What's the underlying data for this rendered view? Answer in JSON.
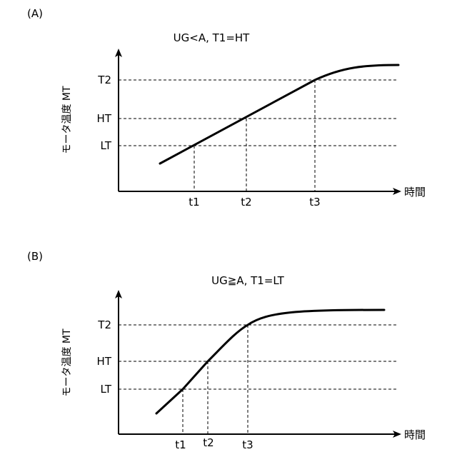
{
  "panels": [
    {
      "label": "(A)",
      "condition": "UG<A, T1=HT",
      "y_axis_label": "モータ温度 MT",
      "x_axis_label": "時間",
      "y_ticks": [
        "T2",
        "HT",
        "LT"
      ],
      "x_ticks": [
        "t1",
        "t2",
        "t3"
      ]
    },
    {
      "label": "(B)",
      "condition": "UG≧A, T1=LT",
      "y_axis_label": "モータ温度 MT",
      "x_axis_label": "時間",
      "y_ticks": [
        "T2",
        "HT",
        "LT"
      ],
      "x_ticks": [
        "t1",
        "t2",
        "t3"
      ]
    }
  ]
}
